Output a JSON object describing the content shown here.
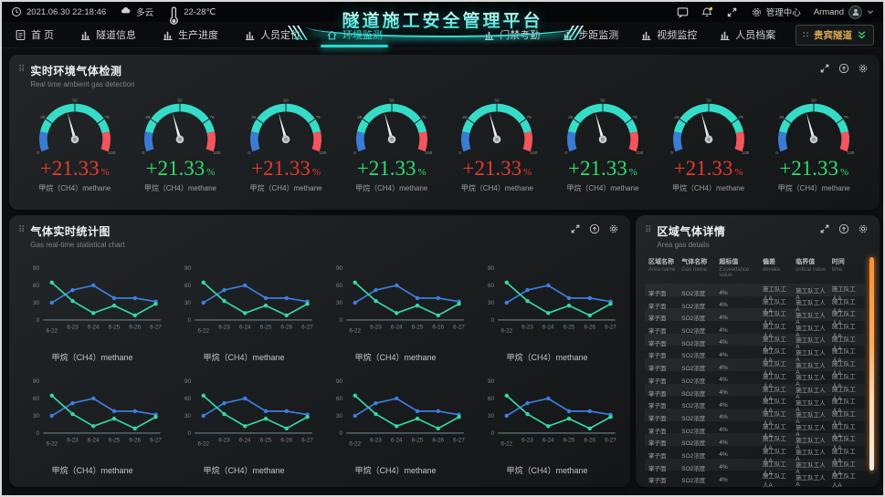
{
  "app": {
    "title": "隧道施工安全管理平台"
  },
  "topbar": {
    "datetime": "2021.06.30 22:18:46",
    "weather": "多云",
    "temperature": "22-28℃",
    "admin_label": "管理中心",
    "username": "Armand"
  },
  "nav": {
    "left": [
      {
        "label": "首 页",
        "icon": "doc",
        "active": false
      },
      {
        "label": "隧道信息",
        "icon": "bars",
        "active": false
      },
      {
        "label": "生产进度",
        "icon": "bars",
        "active": false
      },
      {
        "label": "人员定位",
        "icon": "bars",
        "active": false
      },
      {
        "label": "环境监测",
        "icon": "home",
        "active": true
      }
    ],
    "right": [
      {
        "label": "门禁考勤",
        "icon": "bars"
      },
      {
        "label": "步距监测",
        "icon": "bars"
      },
      {
        "label": "视频监控",
        "icon": "bars"
      },
      {
        "label": "人员档案",
        "icon": "bars"
      }
    ],
    "project_selector": {
      "label": "贵宾隧道"
    }
  },
  "colors": {
    "accent_cyan": "#35dcd4",
    "value_red": "#e73a2e",
    "value_green": "#2fdd70",
    "gauge_blue": "#3a7bd5",
    "gauge_teal": "#35dcc8",
    "gauge_red": "#f2555e",
    "line_blue": "#3e7de0",
    "line_green": "#36d7a8",
    "scrollbar_orange": "#ff8d2a",
    "selector_gold": "#d9aa4e"
  },
  "panels": {
    "gas_detection": {
      "title": "实时环境气体检测",
      "subtitle": "Real time ambient gas detection",
      "gauge_ticks": [
        0,
        25,
        50,
        75,
        100
      ],
      "needle_value": 43,
      "gauges": [
        {
          "value": "+21.33",
          "unit": "%",
          "status": "red",
          "label": "甲烷（CH4）methane"
        },
        {
          "value": "+21.33",
          "unit": "%",
          "status": "green",
          "label": "甲烷（CH4）methane"
        },
        {
          "value": "+21.33",
          "unit": "%",
          "status": "red",
          "label": "甲烷（CH4）methane"
        },
        {
          "value": "+21.33",
          "unit": "%",
          "status": "green",
          "label": "甲烷（CH4）methane"
        },
        {
          "value": "+21.33",
          "unit": "%",
          "status": "red",
          "label": "甲烷（CH4）methane"
        },
        {
          "value": "+21.33",
          "unit": "%",
          "status": "green",
          "label": "甲烷（CH4）methane"
        },
        {
          "value": "+21.33",
          "unit": "%",
          "status": "red",
          "label": "甲烷（CH4）methane"
        },
        {
          "value": "+21.33",
          "unit": "%",
          "status": "green",
          "label": "甲烷（CH4）methane"
        }
      ]
    },
    "gas_chart": {
      "title": "气体实时统计图",
      "subtitle": "Gas real-time statistical chart",
      "chart_count": 8
    },
    "area_details": {
      "title": "区域气体详情",
      "subtitle": "Area gas details",
      "columns": [
        {
          "zh": "区域名称",
          "en": "Area name"
        },
        {
          "zh": "气体名称",
          "en": "Gas name"
        },
        {
          "zh": "超标值",
          "en": "Exceedance value"
        },
        {
          "zh": "偏差",
          "en": "deviate"
        },
        {
          "zh": "临界值",
          "en": "critical value"
        },
        {
          "zh": "时间",
          "en": "time"
        }
      ],
      "rows": [
        [
          "掌子面",
          "SO2浓度",
          "4%",
          "施工队工人A",
          "施工队工人A",
          "施工队工人A"
        ],
        [
          "掌子面",
          "SO2浓度",
          "4%",
          "施工队工人A",
          "施工队工人A",
          "施工队工人A"
        ],
        [
          "掌子面",
          "SO2浓度",
          "4%",
          "施工队工人A",
          "施工队工人A",
          "施工队工人A"
        ],
        [
          "掌子面",
          "SO2浓度",
          "4%",
          "施工队工人A",
          "施工队工人A",
          "施工队工人A"
        ],
        [
          "掌子面",
          "SO2浓度",
          "4%",
          "施工队工人A",
          "施工队工人A",
          "施工队工人A"
        ],
        [
          "掌子面",
          "SO2浓度",
          "4%",
          "施工队工人A",
          "施工队工人A",
          "施工队工人A"
        ],
        [
          "掌子面",
          "SO2浓度",
          "4%",
          "施工队工人A",
          "施工队工人A",
          "施工队工人A"
        ],
        [
          "掌子面",
          "SO2浓度",
          "4%",
          "施工队工人A",
          "施工队工人A",
          "施工队工人A"
        ],
        [
          "掌子面",
          "SO2浓度",
          "4%",
          "施工队工人A",
          "施工队工人A",
          "施工队工人A"
        ],
        [
          "掌子面",
          "SO2浓度",
          "4%",
          "施工队工人A",
          "施工队工人A",
          "施工队工人A"
        ],
        [
          "掌子面",
          "SO2浓度",
          "4%",
          "施工队工人A",
          "施工队工人A",
          "施工队工人A"
        ],
        [
          "掌子面",
          "SO2浓度",
          "4%",
          "施工队工人A",
          "施工队工人A",
          "施工队工人A"
        ],
        [
          "掌子面",
          "SO2浓度",
          "4%",
          "施工队工人A",
          "施工队工人A",
          "施工队工人A"
        ],
        [
          "掌子面",
          "SO2浓度",
          "4%",
          "施工队工人A",
          "施工队工人A",
          "施工队工人A"
        ],
        [
          "掌子面",
          "SO2浓度",
          "4%",
          "施工队工人A",
          "施工队工人A",
          "施工队工人A"
        ],
        [
          "掌子面",
          "SO2浓度",
          "4%",
          "施工队工人A",
          "施工队工人A",
          "施工队工人A"
        ]
      ]
    }
  },
  "chart_data": {
    "type": "line",
    "x": [
      "6-22",
      "6-23",
      "6-24",
      "6-25",
      "6-26",
      "6-27"
    ],
    "series": [
      {
        "name": "series-blue",
        "color": "#3e7de0",
        "values": [
          30,
          52,
          60,
          38,
          38,
          32
        ]
      },
      {
        "name": "series-green",
        "color": "#36d7a8",
        "values": [
          65,
          33,
          12,
          25,
          8,
          28
        ]
      }
    ],
    "yticks": [
      0,
      30,
      60,
      90
    ],
    "ylim": [
      0,
      90
    ],
    "xlabel": "甲烷（CH4）methane",
    "grid": false,
    "legend": false,
    "repeated_panels": 8
  }
}
